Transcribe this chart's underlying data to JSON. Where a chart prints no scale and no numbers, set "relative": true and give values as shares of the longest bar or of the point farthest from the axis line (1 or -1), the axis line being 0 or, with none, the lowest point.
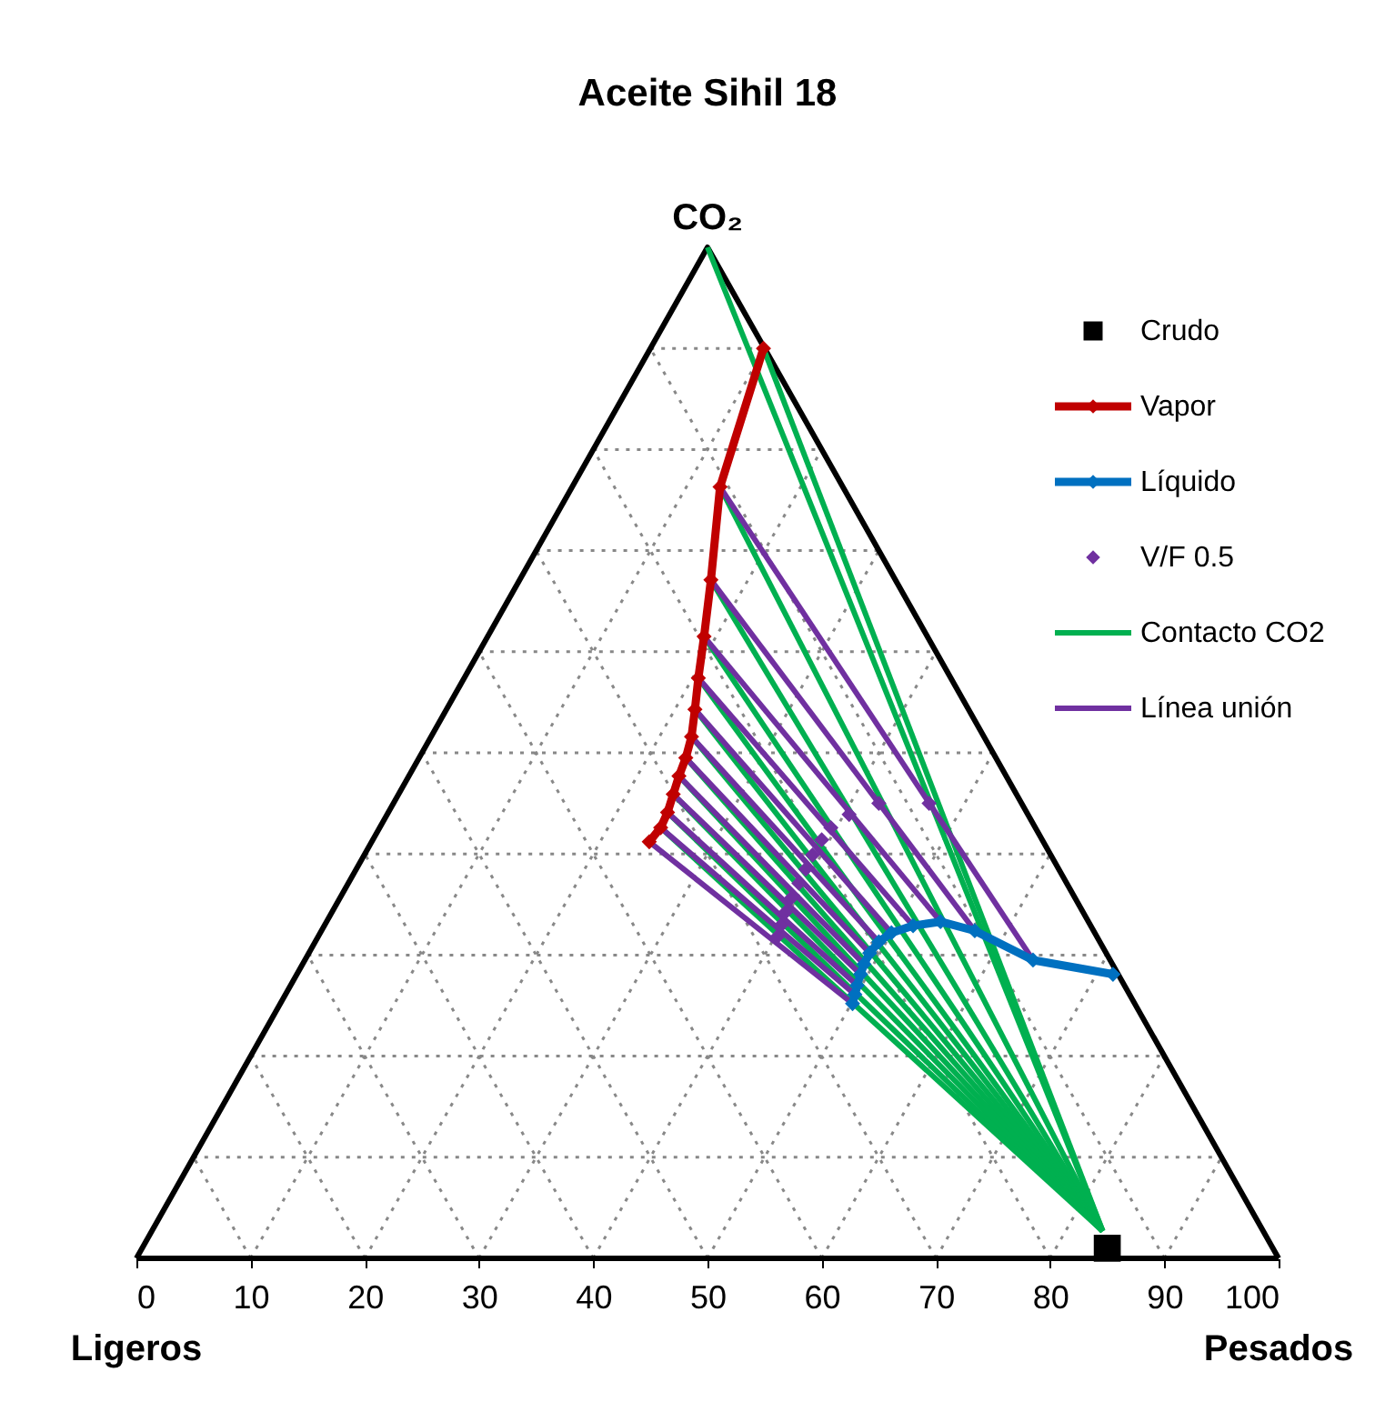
{
  "chart_data": {
    "type": "line",
    "title": "Aceite Sihil 18",
    "relative": true,
    "legend": "right",
    "xlim": [
      0,
      100
    ],
    "xticks": [
      0,
      10,
      20,
      30,
      40,
      50,
      60,
      70,
      80,
      90,
      100
    ],
    "annotations": [
      {
        "text": "CO₂",
        "x": 50,
        "y": 1
      },
      {
        "text": "Ligeros",
        "x": 0,
        "y": 0
      },
      {
        "text": "Pesados",
        "x": 100,
        "y": 0
      }
    ],
    "series": [
      {
        "color": "#888888",
        "line_style": "dotted",
        "marker": "none",
        "x": [
          5,
          95,
          null,
          10,
          55,
          null,
          10,
          5,
          null,
          10,
          90,
          null,
          20,
          60,
          null,
          20,
          10,
          null,
          15,
          85,
          null,
          30,
          65,
          null,
          30,
          15,
          null,
          20,
          80,
          null,
          40,
          70,
          null,
          40,
          20,
          null,
          25,
          75,
          null,
          50,
          75,
          null,
          50,
          25,
          null,
          30,
          70,
          null,
          60,
          80,
          null,
          60,
          30,
          null,
          35,
          65,
          null,
          70,
          85,
          null,
          70,
          35,
          null,
          40,
          60,
          null,
          80,
          90,
          null,
          80,
          40,
          null,
          45,
          55,
          null,
          90,
          95,
          null,
          90,
          45
        ],
        "values": [
          0.1,
          0.1,
          null,
          0,
          0.9,
          null,
          0,
          0.1,
          null,
          0.2,
          0.2,
          null,
          0,
          0.8,
          null,
          0,
          0.2,
          null,
          0.3,
          0.3,
          null,
          0,
          0.7,
          null,
          0,
          0.3,
          null,
          0.4,
          0.4,
          null,
          0,
          0.6,
          null,
          0,
          0.4,
          null,
          0.5,
          0.5,
          null,
          0,
          0.5,
          null,
          0,
          0.5,
          null,
          0.6,
          0.6,
          null,
          0,
          0.4,
          null,
          0,
          0.6,
          null,
          0.7,
          0.7,
          null,
          0,
          0.3,
          null,
          0,
          0.7,
          null,
          0.8,
          0.8,
          null,
          0,
          0.2,
          null,
          0,
          0.8,
          null,
          0.9,
          0.9,
          null,
          0,
          0.1,
          null,
          0,
          0.9
        ]
      },
      {
        "color": "#000000",
        "marker": "none",
        "x": [
          0,
          50,
          100,
          null,
          100,
          0
        ],
        "values": [
          0,
          1,
          0,
          null,
          0,
          0
        ]
      },
      {
        "name": "Crudo",
        "type": "scatter",
        "color": "#000000",
        "marker": "square",
        "x": [
          85
        ],
        "values": [
          0.01
        ]
      },
      {
        "name": "Vapor",
        "color": "#c00000",
        "marker": "diamond",
        "x": [
          54.9,
          51.1,
          50.3,
          49.7,
          49.2,
          48.9,
          48.6,
          48.1,
          47.5,
          47.0,
          46.5,
          45.9,
          44.9
        ],
        "values": [
          0.9,
          0.763,
          0.671,
          0.615,
          0.574,
          0.543,
          0.516,
          0.495,
          0.477,
          0.459,
          0.441,
          0.426,
          0.412
        ]
      },
      {
        "name": "Líquido",
        "color": "#0070c0",
        "marker": "diamond",
        "x": [
          85.5,
          78.5,
          73.4,
          70.4,
          68.0,
          66.1,
          65.0,
          64.2,
          63.7,
          63.4,
          63.1,
          62.9,
          62.7
        ],
        "values": [
          0.281,
          0.295,
          0.324,
          0.333,
          0.329,
          0.322,
          0.313,
          0.302,
          0.291,
          0.281,
          0.27,
          0.261,
          0.252
        ]
      },
      {
        "name": "V/F 0.5",
        "type": "scatter",
        "color": "#7030a0",
        "marker": "diamond",
        "x": [
          69.4,
          65.0,
          62.4,
          60.8,
          60.0,
          59.2,
          58.6,
          58.0,
          57.3,
          56.8,
          56.4,
          56.1
        ],
        "values": [
          0.45,
          0.45,
          0.439,
          0.426,
          0.414,
          0.399,
          0.385,
          0.371,
          0.356,
          0.342,
          0.329,
          0.318
        ]
      },
      {
        "name": "Contacto CO2",
        "color": "#00b050",
        "marker": "none",
        "x": [
          84.6,
          50,
          null,
          84.6,
          54.9,
          null,
          84.6,
          51.1,
          null,
          84.6,
          50.3,
          null,
          84.6,
          49.7,
          null,
          84.6,
          49.2,
          null,
          84.6,
          48.9,
          null,
          84.6,
          48.6,
          null,
          84.6,
          48.1,
          null,
          84.6,
          47.5,
          null,
          84.6,
          47.0,
          null,
          84.6,
          46.5,
          null,
          84.6,
          45.9
        ],
        "values": [
          0.027,
          1,
          null,
          0.027,
          0.9,
          null,
          0.027,
          0.763,
          null,
          0.027,
          0.671,
          null,
          0.027,
          0.615,
          null,
          0.027,
          0.574,
          null,
          0.027,
          0.543,
          null,
          0.027,
          0.516,
          null,
          0.027,
          0.495,
          null,
          0.027,
          0.477,
          null,
          0.027,
          0.459,
          null,
          0.027,
          0.441,
          null,
          0.027,
          0.426
        ]
      },
      {
        "name": "Línea unión",
        "color": "#7030a0",
        "marker": "none",
        "x": [
          51.1,
          78.5,
          null,
          50.3,
          73.4,
          null,
          49.7,
          70.4,
          null,
          49.2,
          68.0,
          null,
          48.9,
          66.1,
          null,
          48.6,
          65.0,
          null,
          48.1,
          64.2,
          null,
          47.5,
          63.7,
          null,
          47.0,
          63.4,
          null,
          46.5,
          63.1,
          null,
          45.9,
          62.9,
          null,
          44.9,
          62.7
        ],
        "values": [
          0.763,
          0.295,
          null,
          0.671,
          0.324,
          null,
          0.615,
          0.333,
          null,
          0.574,
          0.329,
          null,
          0.543,
          0.322,
          null,
          0.516,
          0.313,
          null,
          0.495,
          0.302,
          null,
          0.477,
          0.291,
          null,
          0.459,
          0.281,
          null,
          0.441,
          0.27,
          null,
          0.426,
          0.261,
          null,
          0.412,
          0.252
        ]
      }
    ]
  }
}
